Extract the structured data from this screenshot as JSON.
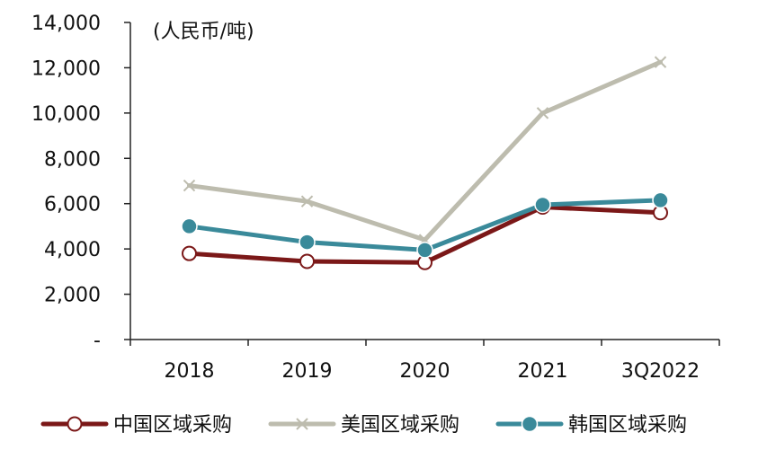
{
  "chart_data": {
    "type": "line",
    "categories": [
      "2018",
      "2019",
      "2020",
      "2021",
      "3Q2022"
    ],
    "series": [
      {
        "name": "中国区域采购",
        "values": [
          3800,
          3450,
          3400,
          5850,
          5600
        ],
        "color": "#7b1818",
        "marker": "open-circle"
      },
      {
        "name": "美国区域采购",
        "values": [
          6800,
          6100,
          4400,
          10000,
          12250
        ],
        "color": "#bdbcae",
        "marker": "x"
      },
      {
        "name": "韩国区域采购",
        "values": [
          5000,
          4300,
          3950,
          5950,
          6150
        ],
        "color": "#3a8a9a",
        "marker": "filled-circle"
      }
    ],
    "unit_label": "(人民币/吨)",
    "ylim": [
      0,
      14000
    ],
    "y_ticks": [
      {
        "value": 0,
        "label": "-"
      },
      {
        "value": 2000,
        "label": "2,000"
      },
      {
        "value": 4000,
        "label": "4,000"
      },
      {
        "value": 6000,
        "label": "6,000"
      },
      {
        "value": 8000,
        "label": "8,000"
      },
      {
        "value": 10000,
        "label": "10,000"
      },
      {
        "value": 12000,
        "label": "12,000"
      },
      {
        "value": 14000,
        "label": "14,000"
      }
    ],
    "grid": false,
    "legend_position": "bottom",
    "axis_color": "#222222"
  }
}
